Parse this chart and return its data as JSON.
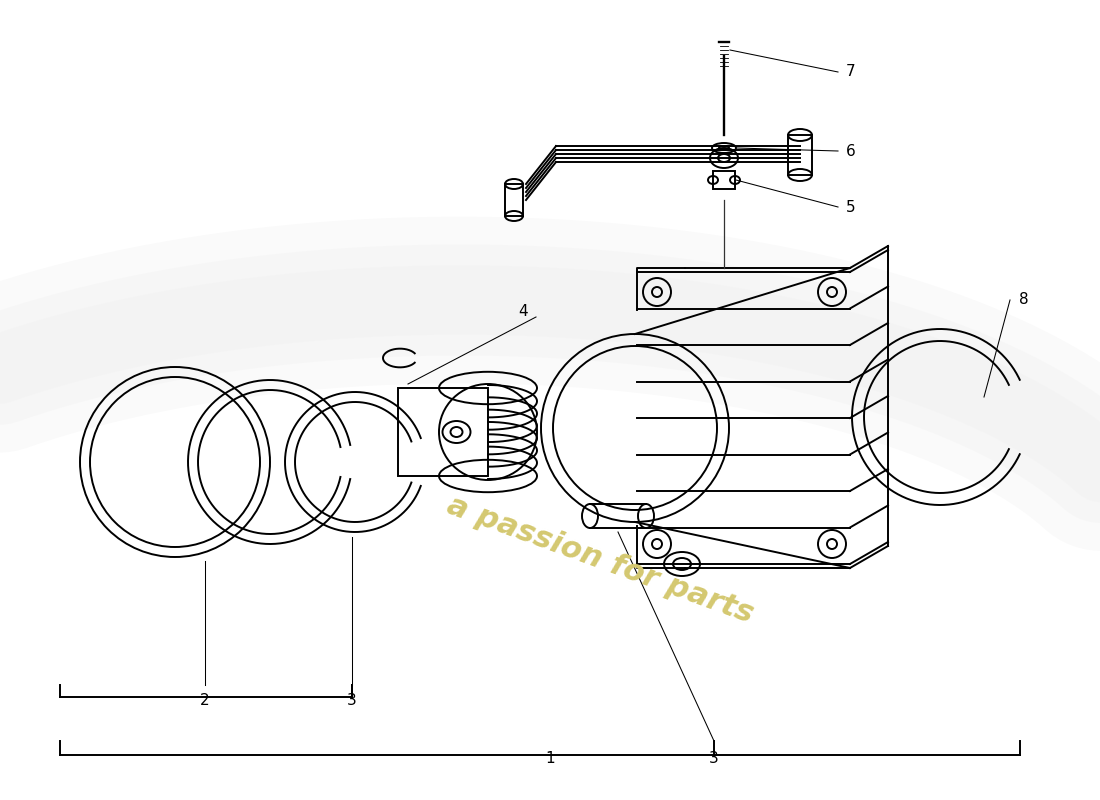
{
  "bg": "#ffffff",
  "lc": "#000000",
  "lw": 1.4,
  "fs": 11,
  "figsize": [
    11.0,
    8.0
  ],
  "dpi": 100,
  "wm_car_color": "#e0e0e0",
  "wm_text_color": "#d4c870",
  "wm_text": "a passion for parts"
}
